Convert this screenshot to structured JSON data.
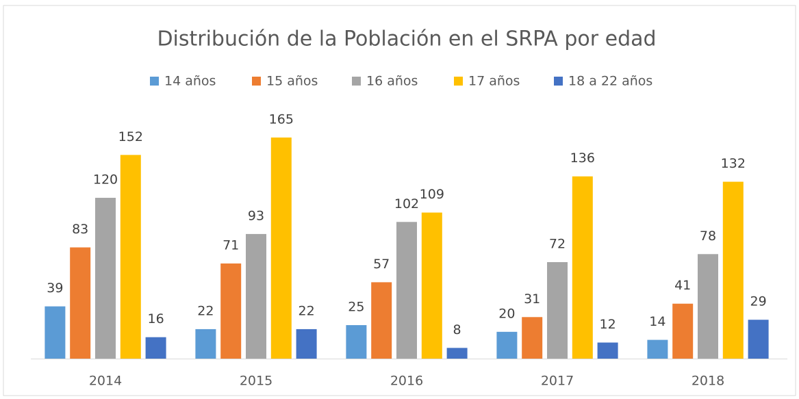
{
  "chart_data": {
    "type": "bar",
    "title": "Distribución de la Población en el SRPA por edad",
    "categories": [
      "2014",
      "2015",
      "2016",
      "2017",
      "2018"
    ],
    "series": [
      {
        "name": "14 años",
        "color": "#5b9bd5",
        "values": [
          39,
          22,
          25,
          20,
          14
        ]
      },
      {
        "name": "15 años",
        "color": "#ed7d31",
        "values": [
          83,
          71,
          57,
          31,
          41
        ]
      },
      {
        "name": "16 años",
        "color": "#a5a5a5",
        "values": [
          120,
          93,
          102,
          72,
          78
        ]
      },
      {
        "name": "17 años",
        "color": "#ffc000",
        "values": [
          152,
          165,
          109,
          136,
          132
        ]
      },
      {
        "name": "18 a 22 años",
        "color": "#4472c4",
        "values": [
          16,
          22,
          8,
          12,
          29
        ]
      }
    ],
    "legend": "top",
    "grid": false
  }
}
